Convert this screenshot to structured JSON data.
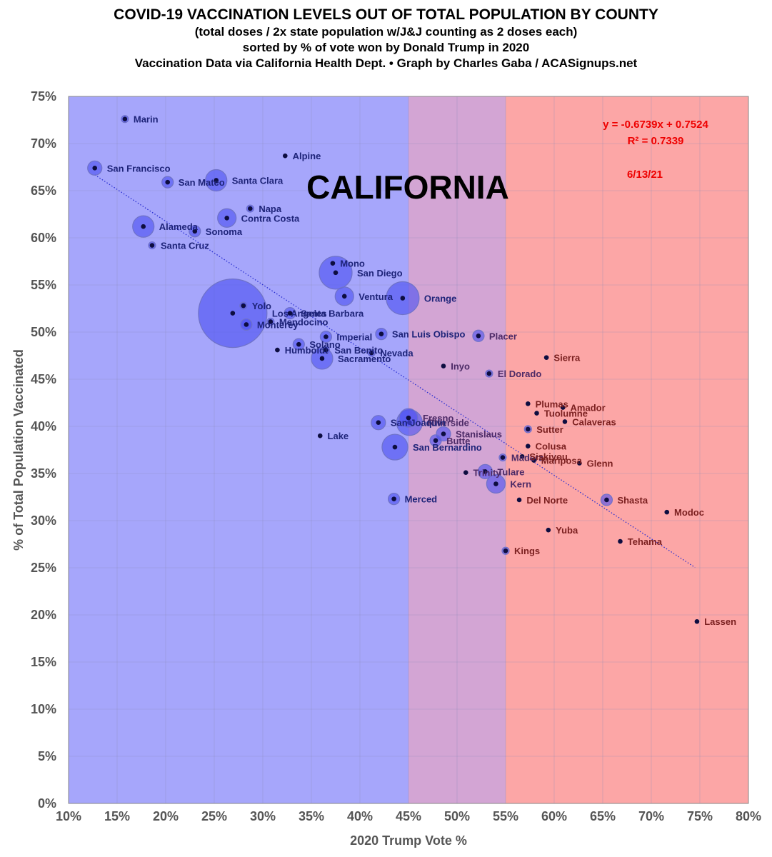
{
  "title": "COVID-19 VACCINATION LEVELS OUT OF TOTAL POPULATION BY COUNTY",
  "subtitle_lines": [
    "(total doses / 2x state population w/J&J counting as 2 doses each)",
    "sorted by % of vote won by Donald Trump in 2020",
    "Vaccination Data via California Health Dept. • Graph by Charles Gaba / ACASignups.net"
  ],
  "chart_data": {
    "type": "scatter",
    "xlabel": "2020 Trump Vote %",
    "ylabel": "% of Total Population Vaccinated",
    "xlim": [
      10,
      80
    ],
    "ylim": [
      0,
      75
    ],
    "x_tick_labels": [
      "10%",
      "15%",
      "20%",
      "25%",
      "30%",
      "35%",
      "40%",
      "45%",
      "50%",
      "55%",
      "60%",
      "65%",
      "70%",
      "75%",
      "80%"
    ],
    "y_tick_labels": [
      "0%",
      "5%",
      "10%",
      "15%",
      "20%",
      "25%",
      "30%",
      "35%",
      "40%",
      "45%",
      "50%",
      "55%",
      "60%",
      "65%",
      "70%",
      "75%"
    ],
    "grid": true,
    "background_bands": [
      {
        "from": 10,
        "to": 45,
        "color": "#a6a6fb"
      },
      {
        "from": 45,
        "to": 55,
        "color": "#d3a5d4"
      },
      {
        "from": 55,
        "to": 80,
        "color": "#fca6a6"
      }
    ],
    "state_label": "CALIFORNIA",
    "date_label": "6/13/21",
    "trendline": {
      "equation": "y = -0.6739x + 0.7524",
      "r_squared": "R² = 0.7339",
      "slope": -0.6739,
      "intercept": 0.7524,
      "x_range": [
        12.7,
        74.5
      ],
      "style": "dotted"
    },
    "bubble_color": "#4a4ef2",
    "points": [
      {
        "name": "Marin",
        "x": 15.8,
        "y": 72.6,
        "size": 1
      },
      {
        "name": "San Francisco",
        "x": 12.7,
        "y": 67.4,
        "size": 3
      },
      {
        "name": "Alpine",
        "x": 32.3,
        "y": 68.7,
        "size": 0
      },
      {
        "name": "San Mateo",
        "x": 20.2,
        "y": 65.9,
        "size": 2
      },
      {
        "name": "Santa Clara",
        "x": 25.2,
        "y": 66.1,
        "size": 5
      },
      {
        "name": "Napa",
        "x": 28.7,
        "y": 63.1,
        "size": 1
      },
      {
        "name": "Contra Costa",
        "x": 26.3,
        "y": 62.1,
        "size": 4
      },
      {
        "name": "Alameda",
        "x": 17.7,
        "y": 61.2,
        "size": 5
      },
      {
        "name": "Sonoma",
        "x": 23.0,
        "y": 60.7,
        "size": 2
      },
      {
        "name": "Santa Cruz",
        "x": 18.6,
        "y": 59.2,
        "size": 1
      },
      {
        "name": "Mono",
        "x": 37.2,
        "y": 57.3,
        "size": 0
      },
      {
        "name": "San Diego",
        "x": 37.5,
        "y": 56.3,
        "size": 7
      },
      {
        "name": "Ventura",
        "x": 38.4,
        "y": 53.8,
        "size": 4
      },
      {
        "name": "Orange",
        "x": 44.4,
        "y": 53.6,
        "size": 7
      },
      {
        "name": "Yolo",
        "x": 28.0,
        "y": 52.8,
        "size": 1
      },
      {
        "name": "Santa Barbara",
        "x": 32.8,
        "y": 52.0,
        "size": 2
      },
      {
        "name": "Los Angeles",
        "x": 26.9,
        "y": 52.0,
        "size": 10
      },
      {
        "name": "Mendocino",
        "x": 30.8,
        "y": 51.1,
        "size": 1
      },
      {
        "name": "Monterey",
        "x": 28.3,
        "y": 50.8,
        "size": 2
      },
      {
        "name": "San Luis Obispo",
        "x": 42.2,
        "y": 49.8,
        "size": 2
      },
      {
        "name": "Placer",
        "x": 52.2,
        "y": 49.6,
        "size": 2
      },
      {
        "name": "Imperial",
        "x": 36.5,
        "y": 49.5,
        "size": 2
      },
      {
        "name": "Solano",
        "x": 33.7,
        "y": 48.7,
        "size": 2
      },
      {
        "name": "Humboldt",
        "x": 31.5,
        "y": 48.1,
        "size": 0
      },
      {
        "name": "San Benito",
        "x": 36.5,
        "y": 48.1,
        "size": 1
      },
      {
        "name": "Nevada",
        "x": 41.2,
        "y": 47.8,
        "size": 1
      },
      {
        "name": "Sierra",
        "x": 59.2,
        "y": 47.3,
        "size": 0
      },
      {
        "name": "Sacramento",
        "x": 36.1,
        "y": 47.2,
        "size": 5
      },
      {
        "name": "Inyo",
        "x": 48.6,
        "y": 46.4,
        "size": 0
      },
      {
        "name": "El Dorado",
        "x": 53.3,
        "y": 45.6,
        "size": 1
      },
      {
        "name": "Plumas",
        "x": 57.3,
        "y": 42.4,
        "size": 0
      },
      {
        "name": "Amador",
        "x": 60.9,
        "y": 42.0,
        "size": 0
      },
      {
        "name": "Tuolumne",
        "x": 58.2,
        "y": 41.4,
        "size": 0
      },
      {
        "name": "Fresno",
        "x": 45.0,
        "y": 40.9,
        "size": 4
      },
      {
        "name": "Calaveras",
        "x": 61.1,
        "y": 40.5,
        "size": 0
      },
      {
        "name": "Riverside",
        "x": 45.1,
        "y": 40.4,
        "size": 6
      },
      {
        "name": "San Joaquin",
        "x": 41.9,
        "y": 40.4,
        "size": 3
      },
      {
        "name": "Sutter",
        "x": 57.3,
        "y": 39.7,
        "size": 1
      },
      {
        "name": "Stanislaus",
        "x": 48.6,
        "y": 39.2,
        "size": 3
      },
      {
        "name": "Lake",
        "x": 35.9,
        "y": 39.0,
        "size": 0
      },
      {
        "name": "Butte",
        "x": 47.8,
        "y": 38.5,
        "size": 2
      },
      {
        "name": "Colusa",
        "x": 57.3,
        "y": 37.9,
        "size": 0
      },
      {
        "name": "San Bernardino",
        "x": 43.6,
        "y": 37.8,
        "size": 6
      },
      {
        "name": "Madera",
        "x": 54.7,
        "y": 36.7,
        "size": 1
      },
      {
        "name": "Siskiyou",
        "x": 56.7,
        "y": 36.8,
        "size": 0
      },
      {
        "name": "Mariposa",
        "x": 57.9,
        "y": 36.4,
        "size": 0
      },
      {
        "name": "Glenn",
        "x": 62.6,
        "y": 36.1,
        "size": 0
      },
      {
        "name": "Trinity",
        "x": 50.9,
        "y": 35.1,
        "size": 0
      },
      {
        "name": "Tulare",
        "x": 52.9,
        "y": 35.2,
        "size": 3
      },
      {
        "name": "Kern",
        "x": 54.0,
        "y": 33.9,
        "size": 4
      },
      {
        "name": "Merced",
        "x": 43.5,
        "y": 32.3,
        "size": 2
      },
      {
        "name": "Del Norte",
        "x": 56.4,
        "y": 32.2,
        "size": 0
      },
      {
        "name": "Shasta",
        "x": 65.4,
        "y": 32.2,
        "size": 2
      },
      {
        "name": "Modoc",
        "x": 71.6,
        "y": 30.9,
        "size": 0
      },
      {
        "name": "Yuba",
        "x": 59.4,
        "y": 29.0,
        "size": 0
      },
      {
        "name": "Tehama",
        "x": 66.8,
        "y": 27.8,
        "size": 0
      },
      {
        "name": "Kings",
        "x": 55.0,
        "y": 26.8,
        "size": 1
      },
      {
        "name": "Lassen",
        "x": 74.7,
        "y": 19.3,
        "size": 0
      }
    ]
  }
}
